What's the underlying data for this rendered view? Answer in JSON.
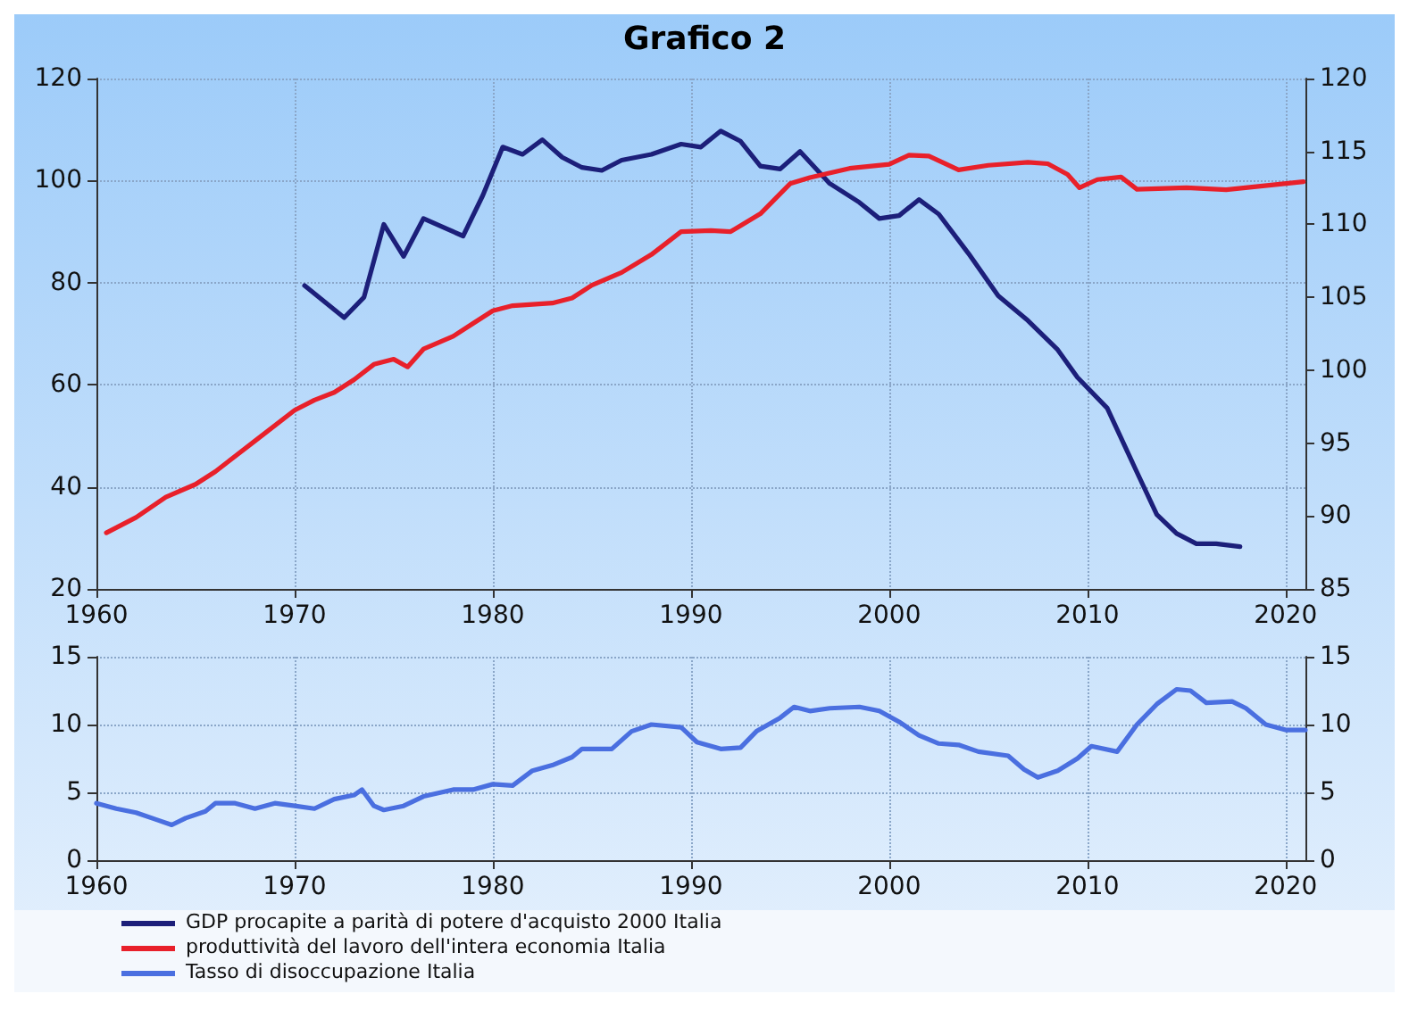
{
  "chart_data": [
    {
      "type": "line",
      "title": "Grafico 2",
      "xlim": [
        1960,
        2021
      ],
      "xticks": [
        1960,
        1970,
        1980,
        1990,
        2000,
        2010,
        2020
      ],
      "ylim": [
        20,
        120
      ],
      "yticks": [
        20,
        40,
        60,
        80,
        100,
        120
      ],
      "y2lim": [
        85,
        120
      ],
      "y2ticks": [
        85,
        90,
        95,
        100,
        105,
        110,
        115,
        120
      ],
      "grid": true,
      "legend": "bottom left",
      "series": [
        {
          "name": "GDP procapite a parità di potere d'acquisto 2000 Italia",
          "color": "#1c1f7a",
          "axis": "y2",
          "x": [
            1970.5,
            1972.5,
            1973.5,
            1974.5,
            1975.5,
            1976.5,
            1978.5,
            1979.5,
            1980.5,
            1981.5,
            1982.5,
            1983.5,
            1984.5,
            1985.5,
            1986.5,
            1988,
            1989.5,
            1990.5,
            1991.5,
            1992.5,
            1993.5,
            1994.5,
            1995.5,
            1997,
            1998.5,
            1999.5,
            2000.5,
            2001.5,
            2002.5,
            2004,
            2005.5,
            2007,
            2008.5,
            2009.5,
            2011,
            2012.5,
            2013.5,
            2014.5,
            2015.5,
            2016.5,
            2017.7
          ],
          "values": [
            105.8,
            103.6,
            105.0,
            110.0,
            107.8,
            110.4,
            109.2,
            112.0,
            115.3,
            114.8,
            115.8,
            114.6,
            113.9,
            113.7,
            114.4,
            114.8,
            115.5,
            115.3,
            116.4,
            115.7,
            114.0,
            113.8,
            115.0,
            112.8,
            111.5,
            110.4,
            110.6,
            111.7,
            110.7,
            108.0,
            105.1,
            103.4,
            101.4,
            99.5,
            97.4,
            93.0,
            90.1,
            88.8,
            88.1,
            88.1,
            87.9
          ]
        },
        {
          "name": "produttività del lavoro dell'intera economia Italia",
          "color": "#e8202a",
          "x": [
            1960.5,
            1962,
            1963.5,
            1965,
            1966,
            1968,
            1970,
            1971,
            1972,
            1973,
            1974,
            1975,
            1975.7,
            1976.5,
            1978,
            1979,
            1980,
            1981,
            1983,
            1984,
            1985,
            1986.5,
            1988,
            1989.5,
            1991,
            1992,
            1993.5,
            1995,
            1996,
            1998,
            2000,
            2001,
            2002,
            2003.5,
            2005,
            2007,
            2008,
            2009,
            2009.6,
            2010.5,
            2011.7,
            2012.5,
            2015,
            2017,
            2020.9
          ],
          "values": [
            31,
            34,
            38,
            40.5,
            43,
            49,
            55,
            57,
            58.5,
            61,
            64,
            65,
            63.5,
            67,
            69.5,
            72,
            74.5,
            75.5,
            76,
            77,
            79.5,
            82,
            85.5,
            90,
            90.2,
            90,
            93.5,
            99.4,
            100.6,
            102.4,
            103.2,
            105,
            104.8,
            102.1,
            103,
            103.6,
            103.3,
            101.2,
            98.6,
            100.2,
            100.7,
            98.3,
            98.6,
            98.2,
            99.8
          ]
        }
      ]
    },
    {
      "type": "line",
      "xlim": [
        1960,
        2021
      ],
      "xticks": [
        1960,
        1970,
        1980,
        1990,
        2000,
        2010,
        2020
      ],
      "ylim": [
        0,
        15
      ],
      "yticks": [
        0,
        5,
        10,
        15
      ],
      "y2lim": [
        0,
        15
      ],
      "y2ticks": [
        0,
        5,
        10,
        15
      ],
      "grid": true,
      "legend": "bottom left",
      "series": [
        {
          "name": "Tasso di disoccupazione Italia",
          "color": "#4a6fe0",
          "x": [
            1960,
            1961,
            1962,
            1963,
            1963.8,
            1964.5,
            1965.5,
            1966,
            1967,
            1968,
            1969,
            1970,
            1971,
            1972,
            1973,
            1973.4,
            1974,
            1974.5,
            1975.5,
            1976.5,
            1978,
            1979,
            1980,
            1981,
            1982,
            1983,
            1984,
            1984.5,
            1986,
            1987,
            1988,
            1989.5,
            1990.3,
            1991.5,
            1992.5,
            1993.3,
            1994.5,
            1995.2,
            1996,
            1997,
            1998.5,
            1999.5,
            2000.5,
            2001.5,
            2002.5,
            2003.5,
            2004.5,
            2006,
            2006.8,
            2007.5,
            2008.5,
            2009.5,
            2010.2,
            2011.5,
            2012.5,
            2013.5,
            2014.5,
            2015.2,
            2016,
            2017.3,
            2018,
            2019,
            2020,
            2021
          ],
          "values": [
            4.2,
            3.8,
            3.5,
            3.0,
            2.6,
            3.1,
            3.6,
            4.2,
            4.2,
            3.8,
            4.2,
            4.0,
            3.8,
            4.5,
            4.8,
            5.2,
            4.0,
            3.7,
            4.0,
            4.7,
            5.2,
            5.2,
            5.6,
            5.5,
            6.6,
            7.0,
            7.6,
            8.2,
            8.2,
            9.5,
            10.0,
            9.8,
            8.7,
            8.2,
            8.3,
            9.5,
            10.5,
            11.3,
            11.0,
            11.2,
            11.3,
            11.0,
            10.2,
            9.2,
            8.6,
            8.5,
            8.0,
            7.7,
            6.7,
            6.1,
            6.6,
            7.5,
            8.4,
            8.0,
            10.0,
            11.5,
            12.6,
            12.5,
            11.6,
            11.7,
            11.2,
            10.0,
            9.6,
            9.6
          ]
        }
      ]
    }
  ]
}
